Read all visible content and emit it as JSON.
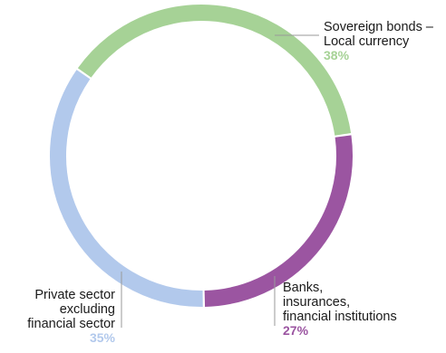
{
  "chart_data": {
    "type": "pie",
    "title": "",
    "unit": "%",
    "segments": [
      {
        "label_lines": [
          "Sovereign bonds –",
          "Local currency"
        ],
        "value": 38,
        "value_label": "38%",
        "color": "#a6d296"
      },
      {
        "label_lines": [
          "Banks,",
          "insurances,",
          "financial institutions"
        ],
        "value": 27,
        "value_label": "27%",
        "color": "#9b55a1"
      },
      {
        "label_lines": [
          "Private sector",
          "excluding",
          "financial sector"
        ],
        "value": 35,
        "value_label": "35%",
        "color": "#b2c9ec"
      }
    ]
  }
}
